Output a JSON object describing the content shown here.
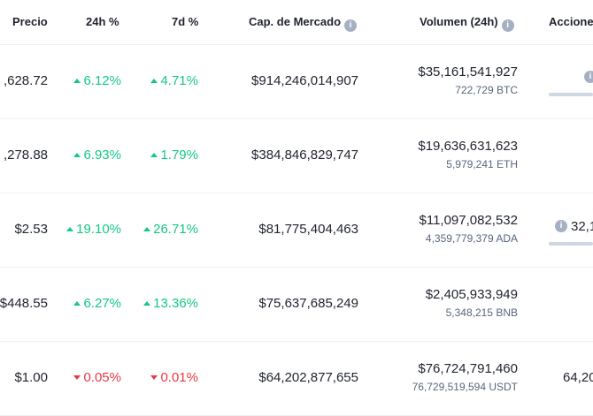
{
  "headers": {
    "price": "Precio",
    "change_24h": "24h %",
    "change_7d": "7d %",
    "market_cap": "Cap. de Mercado",
    "volume": "Volumen (24h)",
    "supply": "Acciones"
  },
  "rows": [
    {
      "price": ",628.72",
      "change_24h": "6.12%",
      "change_24h_dir": "up",
      "change_7d": "4.71%",
      "change_7d_dir": "up",
      "market_cap": "$914,246,014,907",
      "volume": "$35,161,541,927",
      "volume_sub": "722,729 BTC",
      "supply": ""
    },
    {
      "price": ",278.88",
      "change_24h": "6.93%",
      "change_24h_dir": "up",
      "change_7d": "1.79%",
      "change_7d_dir": "up",
      "market_cap": "$384,846,829,747",
      "volume": "$19,636,631,623",
      "volume_sub": "5,979,241 ETH",
      "supply": ""
    },
    {
      "price": "$2.53",
      "change_24h": "19.10%",
      "change_24h_dir": "up",
      "change_7d": "26.71%",
      "change_7d_dir": "up",
      "market_cap": "$81,775,404,463",
      "volume": "$11,097,082,532",
      "volume_sub": "4,359,779,379 ADA",
      "supply": "32,1"
    },
    {
      "price": "$448.55",
      "change_24h": "6.27%",
      "change_24h_dir": "up",
      "change_7d": "13.36%",
      "change_7d_dir": "up",
      "market_cap": "$75,637,685,249",
      "volume": "$2,405,933,949",
      "volume_sub": "5,348,215 BNB",
      "supply": ""
    },
    {
      "price": "$1.00",
      "change_24h": "0.05%",
      "change_24h_dir": "down",
      "change_7d": "0.01%",
      "change_7d_dir": "down",
      "market_cap": "$64,202,877,655",
      "volume": "$76,724,791,460",
      "volume_sub": "76,729,519,594 USDT",
      "supply": "64,20"
    }
  ],
  "colors": {
    "up": "#16c784",
    "down": "#ea3943",
    "border": "#eff2f5",
    "muted": "#58667e"
  }
}
